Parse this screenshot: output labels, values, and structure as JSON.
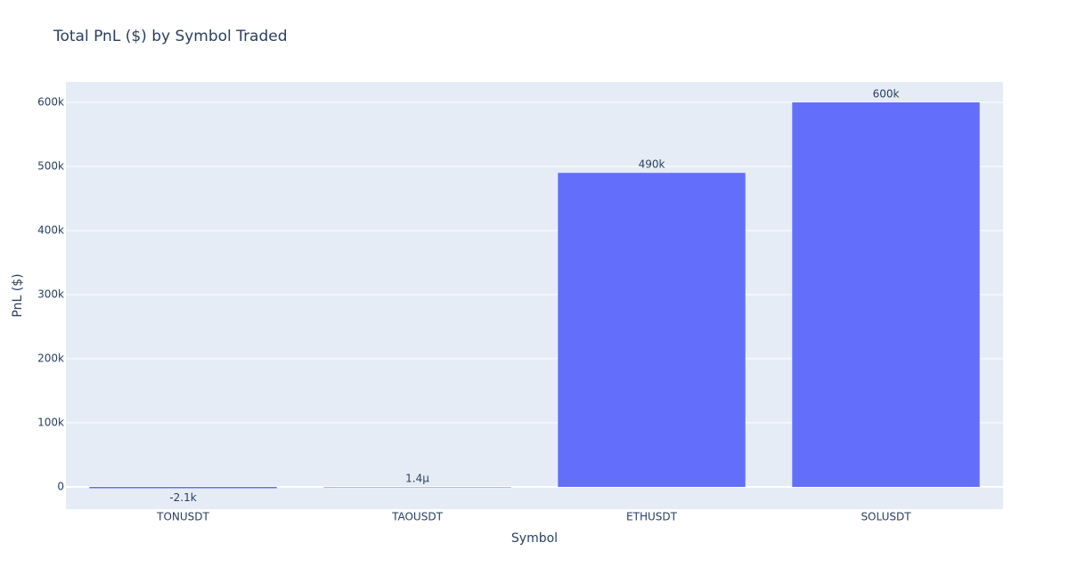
{
  "chart_data": {
    "type": "bar",
    "title": "Total PnL ($) by Symbol Traded",
    "x_label": "Symbol",
    "y_label": "PnL ($)",
    "categories": [
      "TONUSDT",
      "TAOUSDT",
      "ETHUSDT",
      "SOLUSDT"
    ],
    "values": [
      -2100,
      1.4e-06,
      490000,
      600000
    ],
    "value_labels": [
      "-2.1k",
      "1.4µ",
      "490k",
      "600k"
    ],
    "color": "#636efa",
    "ylim": [
      -34700,
      632000
    ],
    "yticks": [
      0,
      {
        "value": 100000,
        "label": "100k"
      },
      {
        "value": 200000,
        "label": "200k"
      },
      {
        "value": 300000,
        "label": "300k"
      },
      {
        "value": 400000,
        "label": "400k"
      },
      {
        "value": 500000,
        "label": "500k"
      },
      {
        "value": 600000,
        "label": "600k"
      }
    ],
    "grid": true
  }
}
